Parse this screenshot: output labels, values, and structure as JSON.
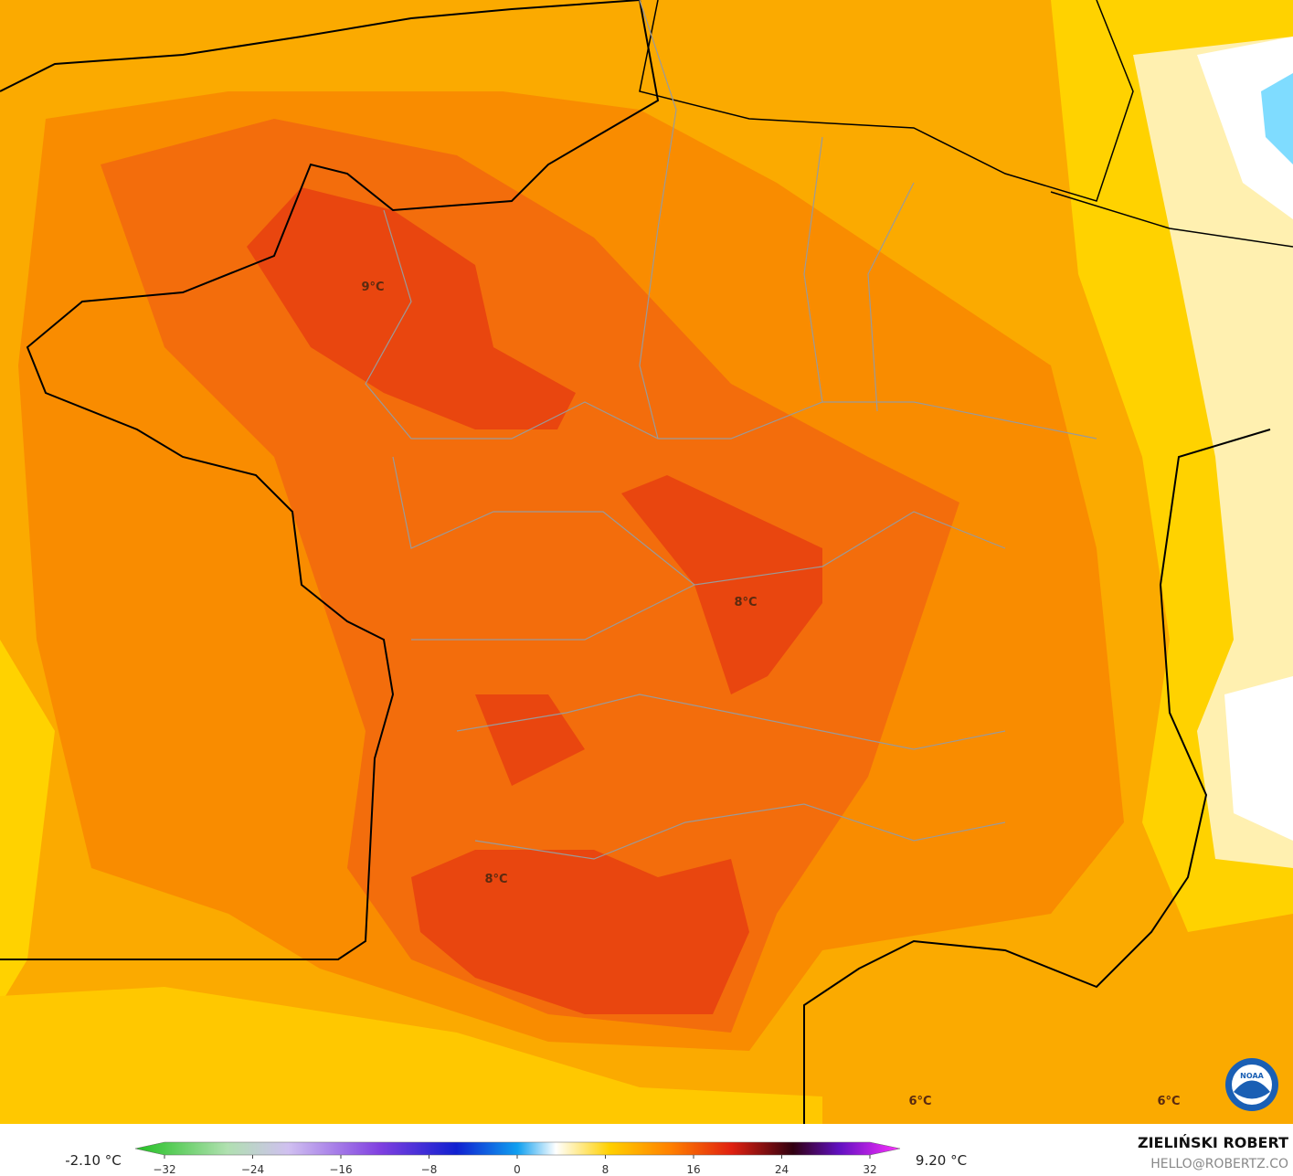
{
  "map": {
    "contour_labels": [
      {
        "text": "9°C"
      },
      {
        "text": "8°C"
      },
      {
        "text": "8°C"
      },
      {
        "text": "6°C"
      },
      {
        "text": "6°C"
      }
    ],
    "legend": {
      "min_label": "-2.10 °C",
      "max_label": "9.20 °C",
      "range": [
        -32,
        32
      ],
      "ticks": [
        {
          "value": -32,
          "label": "−32"
        },
        {
          "value": -24,
          "label": "−24"
        },
        {
          "value": -16,
          "label": "−16"
        },
        {
          "value": -8,
          "label": "−8"
        },
        0,
        8,
        16,
        24,
        32
      ]
    },
    "credit": {
      "author": "ZIELIŃSKI ROBERT",
      "email": "HELLO@ROBERTZ.CO",
      "logo": "NOAA"
    }
  }
}
